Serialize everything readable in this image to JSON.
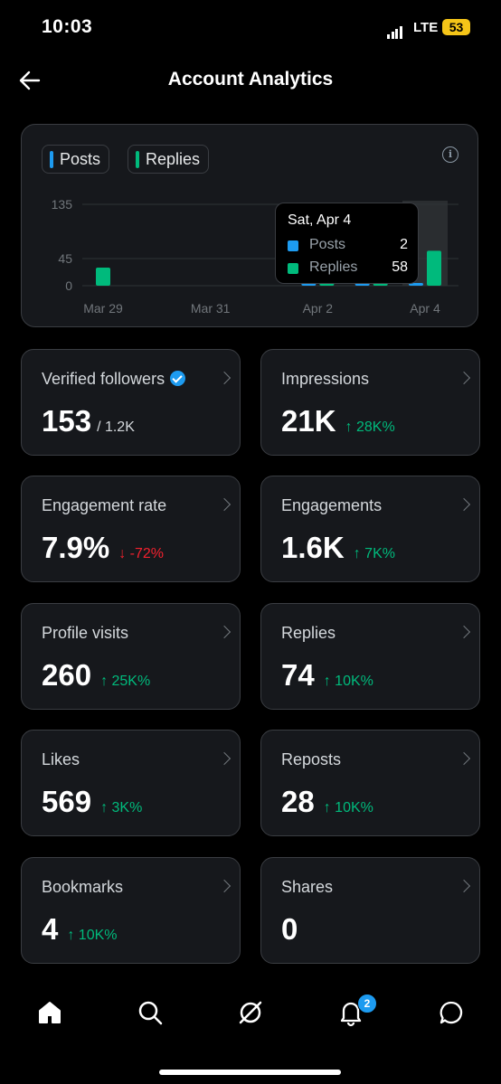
{
  "status": {
    "time": "10:03",
    "network": "LTE",
    "battery": "53"
  },
  "header": {
    "title": "Account Analytics",
    "back_icon": "back-arrow-icon"
  },
  "legend": {
    "posts": "Posts",
    "replies": "Replies",
    "info_icon": "info-icon"
  },
  "colors": {
    "posts": "#1d9bf0",
    "replies": "#00ba7c",
    "positive": "#00ba7c",
    "negative": "#f4212e"
  },
  "tooltip": {
    "date": "Sat, Apr 4",
    "rows": [
      {
        "name": "Posts",
        "value": "2"
      },
      {
        "name": "Replies",
        "value": "58"
      }
    ]
  },
  "chart_data": {
    "type": "bar",
    "x": [
      "Mar 29",
      "Mar 30",
      "Mar 31",
      "Apr 1",
      "Apr 2",
      "Apr 3",
      "Apr 4"
    ],
    "xtick_labels": [
      "Mar 29",
      "Mar 31",
      "Apr 2",
      "Apr 4"
    ],
    "ytick_labels": [
      "135",
      "45",
      "0"
    ],
    "ylim": [
      0,
      135
    ],
    "series": [
      {
        "name": "Posts",
        "values": [
          0,
          0,
          0,
          0,
          2,
          2,
          2
        ]
      },
      {
        "name": "Replies",
        "values": [
          30,
          0,
          0,
          0,
          2,
          2,
          58
        ]
      }
    ],
    "highlighted_x": "Apr 4",
    "grid": true,
    "legend": "top-left"
  },
  "metrics": [
    {
      "label": "Verified followers",
      "value": "153",
      "sub": "/ 1.2K",
      "verified": true
    },
    {
      "label": "Impressions",
      "value": "21K",
      "delta": "↑ 28K%",
      "trend": "up"
    },
    {
      "label": "Engagement rate",
      "value": "7.9%",
      "delta": "↓ -72%",
      "trend": "down"
    },
    {
      "label": "Engagements",
      "value": "1.6K",
      "delta": "↑ 7K%",
      "trend": "up"
    },
    {
      "label": "Profile visits",
      "value": "260",
      "delta": "↑ 25K%",
      "trend": "up"
    },
    {
      "label": "Replies",
      "value": "74",
      "delta": "↑ 10K%",
      "trend": "up"
    },
    {
      "label": "Likes",
      "value": "569",
      "delta": "↑ 3K%",
      "trend": "up"
    },
    {
      "label": "Reposts",
      "value": "28",
      "delta": "↑ 10K%",
      "trend": "up"
    },
    {
      "label": "Bookmarks",
      "value": "4",
      "delta": "↑ 10K%",
      "trend": "up"
    },
    {
      "label": "Shares",
      "value": "0",
      "delta": "",
      "trend": ""
    }
  ],
  "nav": {
    "items": [
      "home-icon",
      "search-icon",
      "grok-icon",
      "notifications-icon",
      "messages-icon"
    ],
    "notification_count": "2"
  }
}
